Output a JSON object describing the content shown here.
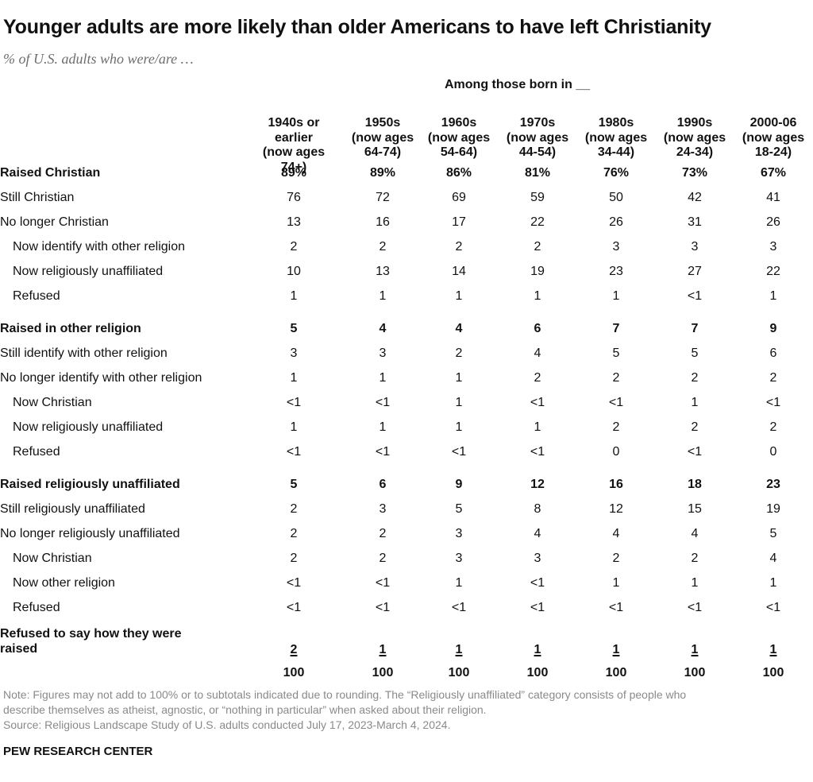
{
  "chart_data": {
    "type": "table",
    "title": "Younger adults are more likely than older Americans to have left Christianity",
    "subtitle": "% of U.S. adults who were/are …",
    "column_group_label": "Among those born in __",
    "columns": [
      [
        "1940s or",
        "earlier",
        "(now ages 74+)"
      ],
      [
        "1950s",
        "(now ages",
        "64-74)"
      ],
      [
        "1960s",
        "(now ages",
        "54-64)"
      ],
      [
        "1970s",
        "(now ages",
        "44-54)"
      ],
      [
        "1980s",
        "(now ages",
        "34-44)"
      ],
      [
        "1990s",
        "(now ages",
        "24-34)"
      ],
      [
        "2000-06",
        "(now ages",
        "18-24)"
      ]
    ],
    "rows": [
      {
        "label": "Raised Christian",
        "level": 0,
        "values": [
          "89%",
          "89%",
          "86%",
          "81%",
          "76%",
          "73%",
          "67%"
        ]
      },
      {
        "label": "Still Christian",
        "level": 1,
        "values": [
          "76",
          "72",
          "69",
          "59",
          "50",
          "42",
          "41"
        ]
      },
      {
        "label": "No longer Christian",
        "level": 1,
        "values": [
          "13",
          "16",
          "17",
          "22",
          "26",
          "31",
          "26"
        ]
      },
      {
        "label": "Now identify with other religion",
        "level": 2,
        "values": [
          "2",
          "2",
          "2",
          "2",
          "3",
          "3",
          "3"
        ]
      },
      {
        "label": "Now religiously unaffiliated",
        "level": 2,
        "values": [
          "10",
          "13",
          "14",
          "19",
          "23",
          "27",
          "22"
        ]
      },
      {
        "label": "Refused",
        "level": 2,
        "values": [
          "1",
          "1",
          "1",
          "1",
          "1",
          "<1",
          "1"
        ]
      },
      {
        "label": "Raised in other religion",
        "level": 0,
        "gap": true,
        "values": [
          "5",
          "4",
          "4",
          "6",
          "7",
          "7",
          "9"
        ]
      },
      {
        "label": "Still identify with other religion",
        "level": 1,
        "values": [
          "3",
          "3",
          "2",
          "4",
          "5",
          "5",
          "6"
        ]
      },
      {
        "label": "No longer identify with other religion",
        "level": 1,
        "values": [
          "1",
          "1",
          "1",
          "2",
          "2",
          "2",
          "2"
        ]
      },
      {
        "label": "Now Christian",
        "level": 2,
        "values": [
          "<1",
          "<1",
          "1",
          "<1",
          "<1",
          "1",
          "<1"
        ]
      },
      {
        "label": "Now religiously unaffiliated",
        "level": 2,
        "values": [
          "1",
          "1",
          "1",
          "1",
          "2",
          "2",
          "2"
        ]
      },
      {
        "label": "Refused",
        "level": 2,
        "values": [
          "<1",
          "<1",
          "<1",
          "<1",
          "0",
          "<1",
          "0"
        ]
      },
      {
        "label": "Raised religiously unaffiliated",
        "level": 0,
        "gap": true,
        "values": [
          "5",
          "6",
          "9",
          "12",
          "16",
          "18",
          "23"
        ]
      },
      {
        "label": "Still religiously unaffiliated",
        "level": 1,
        "values": [
          "2",
          "3",
          "5",
          "8",
          "12",
          "15",
          "19"
        ]
      },
      {
        "label": "No longer religiously unaffiliated",
        "level": 1,
        "values": [
          "2",
          "2",
          "3",
          "4",
          "4",
          "4",
          "5"
        ]
      },
      {
        "label": "Now Christian",
        "level": 2,
        "values": [
          "2",
          "2",
          "3",
          "3",
          "2",
          "2",
          "4"
        ]
      },
      {
        "label": "Now other religion",
        "level": 2,
        "values": [
          "<1",
          "<1",
          "1",
          "<1",
          "1",
          "1",
          "1"
        ]
      },
      {
        "label": "Refused",
        "level": 2,
        "values": [
          "<1",
          "<1",
          "<1",
          "<1",
          "<1",
          "<1",
          "<1"
        ]
      }
    ],
    "refused_row": {
      "label": "Refused to say how they were raised",
      "values": [
        "2",
        "1",
        "1",
        "1",
        "1",
        "1",
        "1"
      ]
    },
    "total_row": {
      "label": "",
      "values": [
        "100",
        "100",
        "100",
        "100",
        "100",
        "100",
        "100"
      ]
    }
  },
  "notes": [
    "Note: Figures may not add to 100% or to subtotals indicated due to rounding. The “Religiously unaffiliated” category consists of people who",
    "describe themselves as atheist, agnostic, or “nothing in particular” when asked about their religion.",
    "Source: Religious Landscape Study of U.S. adults conducted July 17, 2023-March 4, 2024."
  ],
  "footer": "PEW RESEARCH CENTER"
}
